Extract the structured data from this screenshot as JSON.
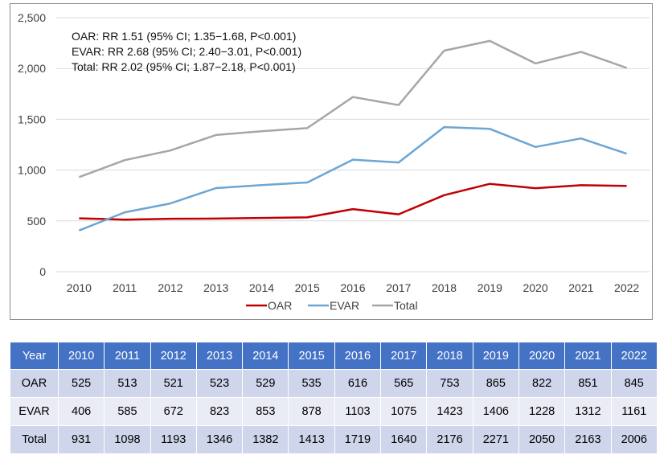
{
  "chart_data": {
    "type": "line",
    "categories": [
      "2010",
      "2011",
      "2012",
      "2013",
      "2014",
      "2015",
      "2016",
      "2017",
      "2018",
      "2019",
      "2020",
      "2021",
      "2022"
    ],
    "series": [
      {
        "name": "OAR",
        "values": [
          525,
          513,
          521,
          523,
          529,
          535,
          616,
          565,
          753,
          865,
          822,
          851,
          845
        ],
        "color": "#c00000"
      },
      {
        "name": "EVAR",
        "values": [
          406,
          585,
          672,
          823,
          853,
          878,
          1103,
          1075,
          1423,
          1406,
          1228,
          1312,
          1161
        ],
        "color": "#6ca6d4"
      },
      {
        "name": "Total",
        "values": [
          931,
          1098,
          1193,
          1346,
          1382,
          1413,
          1719,
          1640,
          2176,
          2271,
          2050,
          2163,
          2006
        ],
        "color": "#a6a6a6"
      }
    ],
    "ylim": [
      0,
      2500
    ],
    "yticks": [
      "0",
      "500",
      "1,000",
      "1,500",
      "2,000",
      "2,500"
    ],
    "grid": true,
    "legend_position": "bottom",
    "annotations": [
      "OAR: RR 1.51 (95% CI; 1.35−1.68, P<0.001)",
      "EVAR: RR 2.68 (95% CI; 2.40−3.01, P<0.001)",
      "Total: RR 2.02 (95% CI; 1.87−2.18, P<0.001)"
    ]
  },
  "table": {
    "header": [
      "Year",
      "2010",
      "2011",
      "2012",
      "2013",
      "2014",
      "2015",
      "2016",
      "2017",
      "2018",
      "2019",
      "2020",
      "2021",
      "2022"
    ],
    "rows": [
      [
        "OAR",
        "525",
        "513",
        "521",
        "523",
        "529",
        "535",
        "616",
        "565",
        "753",
        "865",
        "822",
        "851",
        "845"
      ],
      [
        "EVAR",
        "406",
        "585",
        "672",
        "823",
        "853",
        "878",
        "1103",
        "1075",
        "1423",
        "1406",
        "1228",
        "1312",
        "1161"
      ],
      [
        "Total",
        "931",
        "1098",
        "1193",
        "1346",
        "1382",
        "1413",
        "1719",
        "1640",
        "2176",
        "2271",
        "2050",
        "2163",
        "2006"
      ]
    ]
  }
}
